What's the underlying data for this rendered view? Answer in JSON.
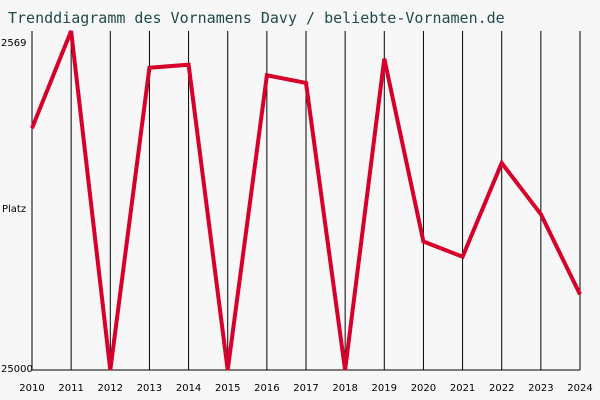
{
  "chart_data": {
    "type": "line",
    "title": "Trenddiagramm des Vornamens Davy / beliebte-Vornamen.de",
    "ylabel": "Platz",
    "x": [
      "2010",
      "2011",
      "2012",
      "2013",
      "2014",
      "2015",
      "2016",
      "2017",
      "2018",
      "2019",
      "2020",
      "2021",
      "2022",
      "2023",
      "2024"
    ],
    "series": [
      {
        "values": [
          9000,
          2569,
          25000,
          5000,
          4800,
          25000,
          5500,
          6000,
          25000,
          4400,
          16500,
          17500,
          11300,
          14700,
          20000
        ]
      }
    ],
    "yticks": [
      "2569",
      "25000"
    ],
    "ylim": [
      2569,
      25000
    ],
    "y_inverted": true,
    "grid": "vertical",
    "colors": {
      "line": "#d7002a",
      "grid": "#000000",
      "background": "#f7f7f7"
    }
  }
}
